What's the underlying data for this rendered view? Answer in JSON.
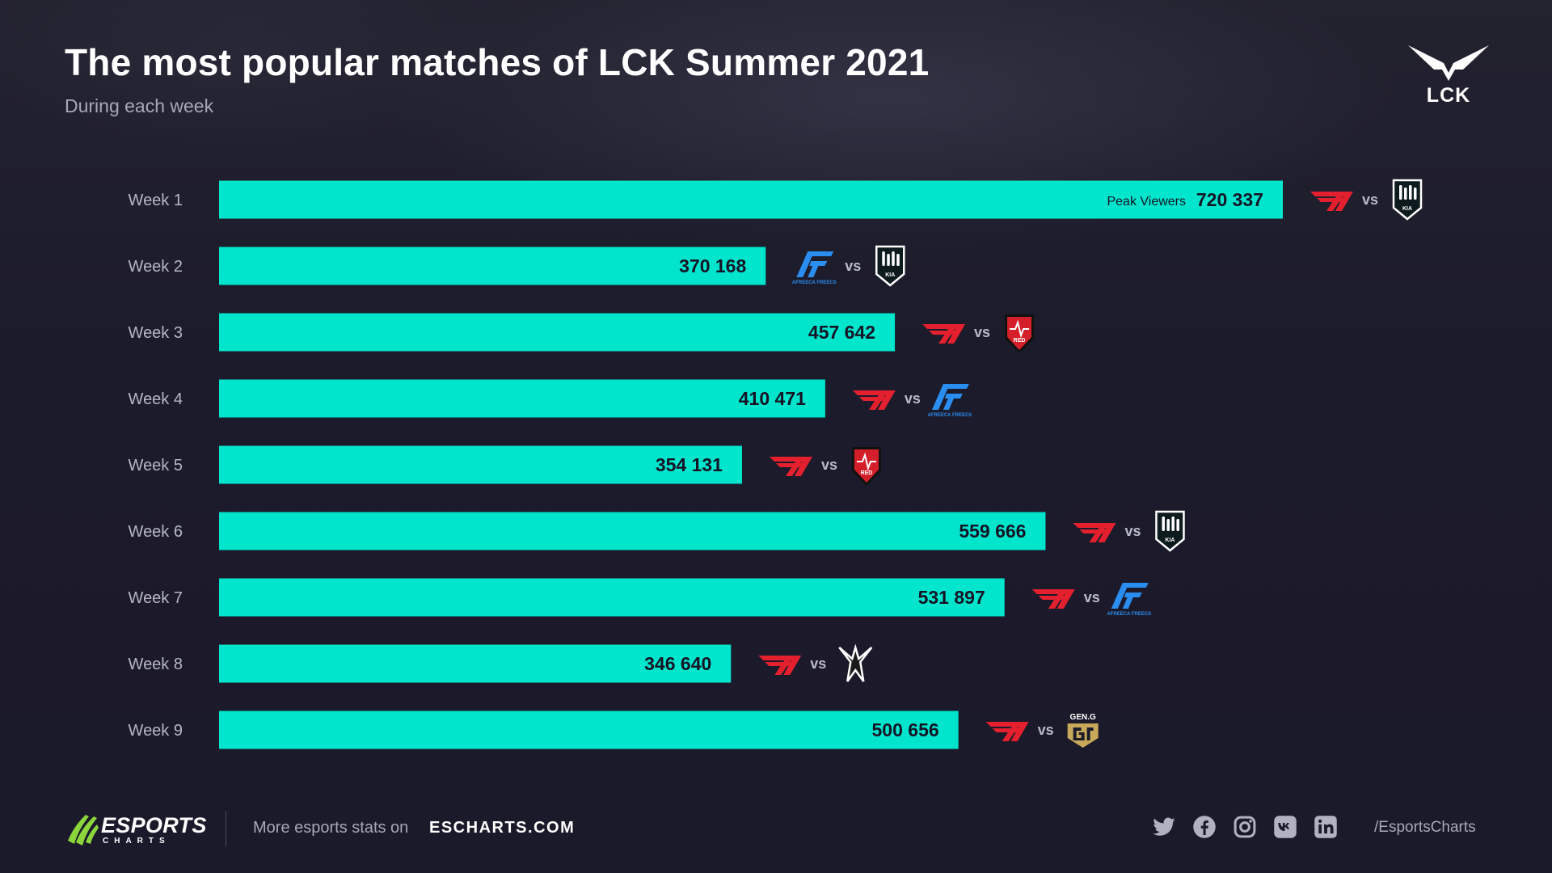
{
  "title": "The most popular matches of LCK Summer 2021",
  "subtitle": "During each week",
  "brand_logo": {
    "text": "LCK",
    "icon": "lck-wing-logo"
  },
  "colors": {
    "bar": "#00e5cc",
    "background": "#1c1b2b",
    "t1": "#e4202e",
    "dk": "#0d1a1e",
    "af": "#2a8df0",
    "ns": "#d41f2a",
    "gen": "#c8a959"
  },
  "chart_data": {
    "type": "bar",
    "orientation": "horizontal",
    "categories": [
      "Week 1",
      "Week 2",
      "Week 3",
      "Week 4",
      "Week 5",
      "Week 6",
      "Week 7",
      "Week 8",
      "Week 9"
    ],
    "values": [
      720337,
      370168,
      457642,
      410471,
      354131,
      559666,
      531897,
      346640,
      500656
    ],
    "value_labels": [
      "720 337",
      "370 168",
      "457 642",
      "410 471",
      "354 131",
      "559 666",
      "531 897",
      "346 640",
      "500 656"
    ],
    "first_bar_caption": "Peak Viewers",
    "grid": false,
    "legend": "none",
    "matchups": [
      {
        "home": "t1",
        "away": "dk"
      },
      {
        "home": "af",
        "away": "dk"
      },
      {
        "home": "t1",
        "away": "ns"
      },
      {
        "home": "t1",
        "away": "af"
      },
      {
        "home": "t1",
        "away": "ns"
      },
      {
        "home": "t1",
        "away": "dk"
      },
      {
        "home": "t1",
        "away": "af"
      },
      {
        "home": "t1",
        "away": "bro"
      },
      {
        "home": "t1",
        "away": "gen"
      }
    ],
    "vs_text": "vs",
    "team_logo_texts": {
      "af": "AFREECA FREECS",
      "ns": "RED",
      "gen": "GEN.G"
    }
  },
  "footer": {
    "brand": "ESPORTS",
    "brand_sub": "CHARTS",
    "more_text": "More esports stats on",
    "site": "ESCHARTS.COM",
    "social": [
      "twitter-icon",
      "facebook-icon",
      "instagram-icon",
      "vk-icon",
      "linkedin-icon"
    ],
    "handle": "/EsportsCharts"
  }
}
